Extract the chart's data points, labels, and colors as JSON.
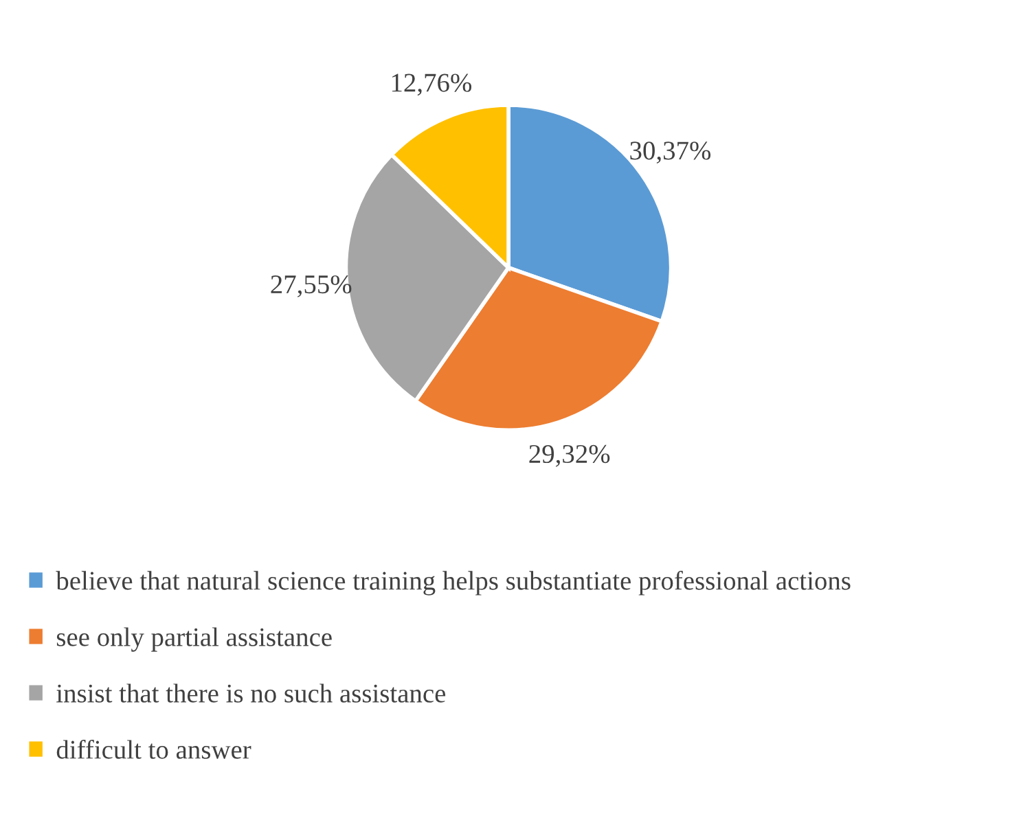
{
  "chart_data": {
    "type": "pie",
    "categories": [
      "believe that natural science training helps substantiate professional actions",
      "see only partial assistance",
      "insist that there is no such assistance",
      "difficult to answer"
    ],
    "values": [
      30.37,
      29.32,
      27.55,
      12.76
    ],
    "value_labels": [
      "30,37%",
      "29,32%",
      "27,55%",
      "12,76%"
    ],
    "colors": [
      "#5b9bd5",
      "#ed7d31",
      "#a5a5a5",
      "#ffc000"
    ],
    "legend": "bottom"
  }
}
